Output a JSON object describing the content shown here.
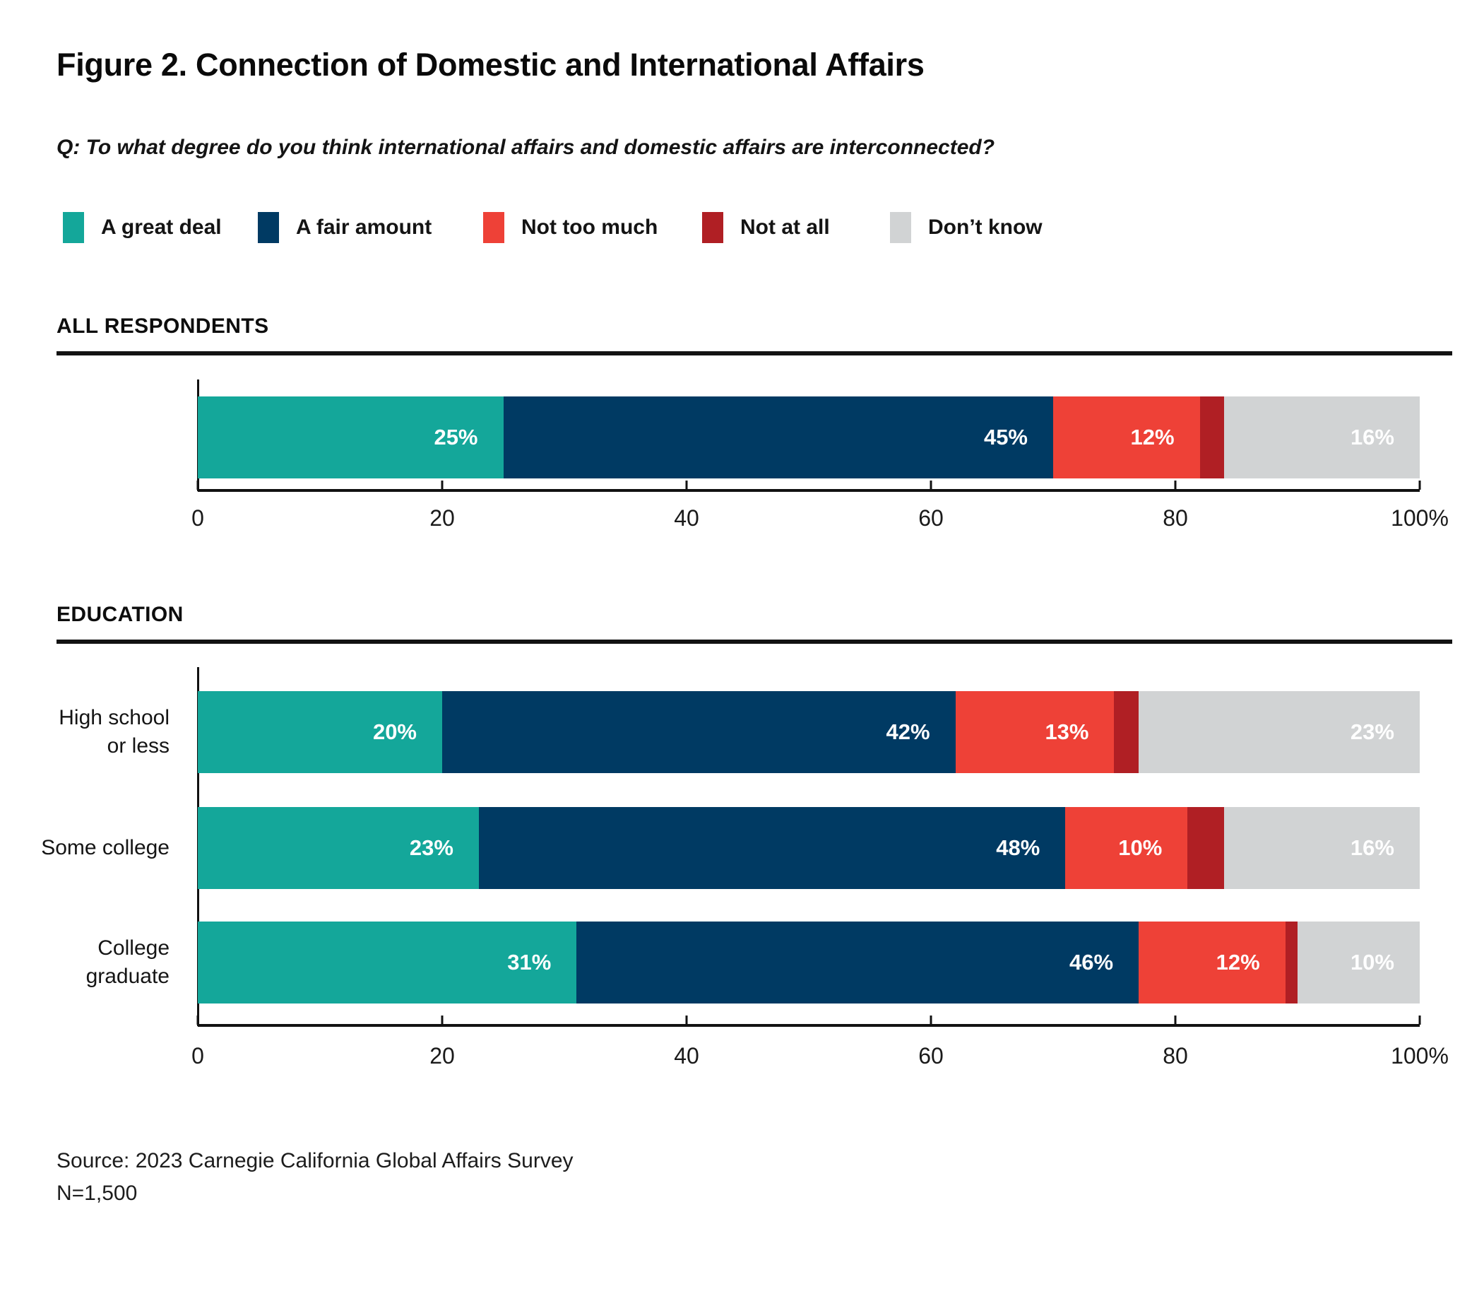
{
  "title": "Figure 2. Connection of Domestic and International Affairs",
  "question": "Q: To what degree do you think international affairs and domestic affairs are interconnected?",
  "legend": [
    {
      "label": "A great deal",
      "color": "#14A79A"
    },
    {
      "label": "A fair amount",
      "color": "#003A63"
    },
    {
      "label": "Not too much",
      "color": "#EE4137"
    },
    {
      "label": "Not at all",
      "color": "#B01F24"
    },
    {
      "label": "Don’t know",
      "color": "#D1D3D4"
    }
  ],
  "source_line1": "Source: 2023 Carnegie California Global Affairs Survey",
  "source_line2": "N=1,500",
  "chart_data": [
    {
      "type": "bar",
      "stacked": true,
      "orientation": "horizontal",
      "section": "ALL RESPONDENTS",
      "categories": [
        ""
      ],
      "series": [
        {
          "name": "A great deal",
          "color": "#14A79A",
          "values": [
            25
          ]
        },
        {
          "name": "A fair amount",
          "color": "#003A63",
          "values": [
            45
          ]
        },
        {
          "name": "Not too much",
          "color": "#EE4137",
          "values": [
            12
          ]
        },
        {
          "name": "Not at all",
          "color": "#B01F24",
          "values": [
            2
          ],
          "labeled": false
        },
        {
          "name": "Don’t know",
          "color": "#D1D3D4",
          "values": [
            16
          ]
        }
      ],
      "xlim": [
        0,
        100
      ],
      "xticks": [
        "0",
        "20",
        "40",
        "60",
        "80",
        "100%"
      ],
      "grid": false,
      "legend_position": "top"
    },
    {
      "type": "bar",
      "stacked": true,
      "orientation": "horizontal",
      "section": "EDUCATION",
      "categories": [
        "High school\nor less",
        "Some college",
        "College\ngraduate"
      ],
      "series": [
        {
          "name": "A great deal",
          "color": "#14A79A",
          "values": [
            20,
            23,
            31
          ]
        },
        {
          "name": "A fair amount",
          "color": "#003A63",
          "values": [
            42,
            48,
            46
          ]
        },
        {
          "name": "Not too much",
          "color": "#EE4137",
          "values": [
            13,
            10,
            12
          ]
        },
        {
          "name": "Not at all",
          "color": "#B01F24",
          "values": [
            2,
            3,
            1
          ],
          "labeled": false
        },
        {
          "name": "Don’t know",
          "color": "#D1D3D4",
          "values": [
            23,
            16,
            10
          ]
        }
      ],
      "xlim": [
        0,
        100
      ],
      "xticks": [
        "0",
        "20",
        "40",
        "60",
        "80",
        "100%"
      ],
      "grid": false,
      "legend_position": "top"
    }
  ]
}
